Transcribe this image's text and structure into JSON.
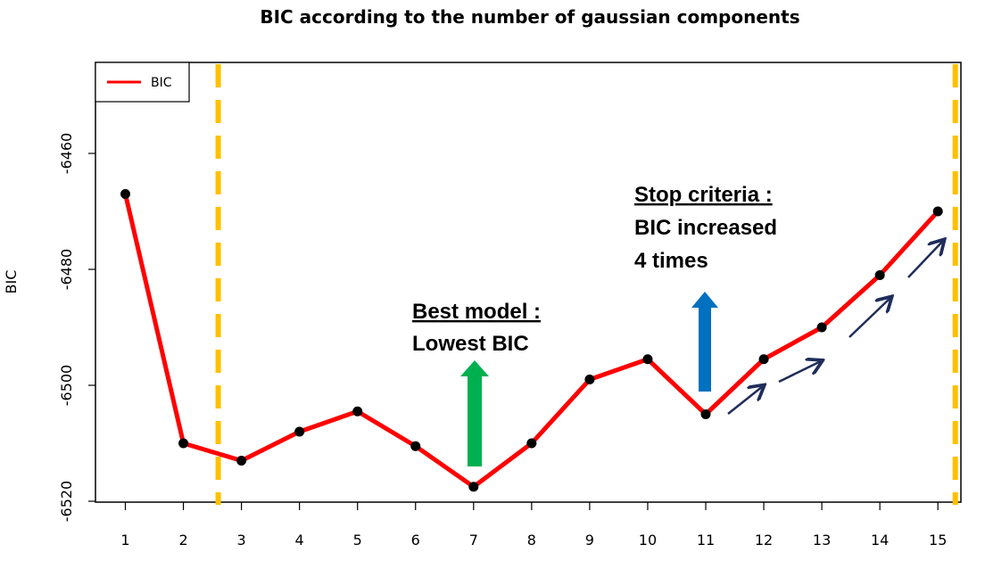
{
  "chart_data": {
    "type": "line",
    "title": "BIC according to the number of gaussian components",
    "xlabel": "",
    "ylabel": "BIC",
    "x": [
      1,
      2,
      3,
      4,
      5,
      6,
      7,
      8,
      9,
      10,
      11,
      12,
      13,
      14,
      15
    ],
    "series": [
      {
        "name": "BIC",
        "color": "#ff0000",
        "values": [
          -6467,
          -6510,
          -6513,
          -6508,
          -6504.5,
          -6510.5,
          -6517.5,
          -6510,
          -6499,
          -6495.5,
          -6505,
          -6495.5,
          -6490,
          -6481,
          -6470
        ]
      }
    ],
    "ylim": [
      -6520,
      -6444
    ],
    "yticks": [
      "-6460",
      "-6480",
      "-6500",
      "-6520"
    ],
    "xticks": [
      "1",
      "2",
      "3",
      "4",
      "5",
      "6",
      "7",
      "8",
      "9",
      "10",
      "11",
      "12",
      "13",
      "14",
      "15"
    ],
    "legend": {
      "position": "top-left",
      "entries": [
        "BIC"
      ]
    },
    "dashed_vlines_x": [
      2.6,
      15.3
    ],
    "annotations": [
      {
        "lines": [
          "Stop criteria :",
          "BIC increased",
          "4 times"
        ]
      },
      {
        "lines": [
          "Best model :",
          "Lowest BIC"
        ]
      }
    ],
    "colors": {
      "line": "#ff0000",
      "points": "#000000",
      "vline": "#ffc000",
      "up_arrow_best": "#00b050",
      "up_arrow_stop": "#0070c0",
      "trend_arrows": "#1f2d5a"
    }
  }
}
